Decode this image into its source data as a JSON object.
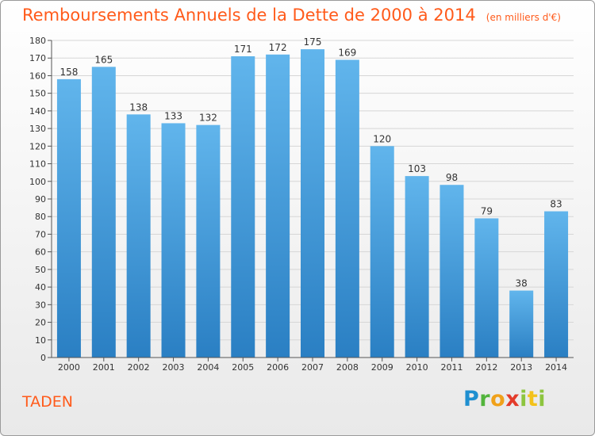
{
  "title": "Remboursements Annuels de la Dette de 2000 à 2014",
  "subtitle": "(en milliers d'€)",
  "commune": "TADEN",
  "brand": {
    "name": "Proxiti",
    "letters": [
      "P",
      "r",
      "o",
      "x",
      "i",
      "t",
      "i"
    ]
  },
  "colors": {
    "title": "#ff5a1a",
    "bar_top": "#61b5ec",
    "bar_bottom": "#2a7fc3"
  },
  "chart_data": {
    "type": "bar",
    "categories": [
      "2000",
      "2001",
      "2002",
      "2003",
      "2004",
      "2005",
      "2006",
      "2007",
      "2008",
      "2009",
      "2010",
      "2011",
      "2012",
      "2013",
      "2014"
    ],
    "values": [
      158,
      165,
      138,
      133,
      132,
      171,
      172,
      175,
      169,
      120,
      103,
      98,
      79,
      38,
      83
    ],
    "yticks": [
      0,
      10,
      20,
      30,
      40,
      50,
      60,
      70,
      80,
      90,
      100,
      110,
      120,
      130,
      140,
      150,
      160,
      170,
      180
    ],
    "ylim": [
      0,
      180
    ],
    "grid": true,
    "data_labels": true
  }
}
